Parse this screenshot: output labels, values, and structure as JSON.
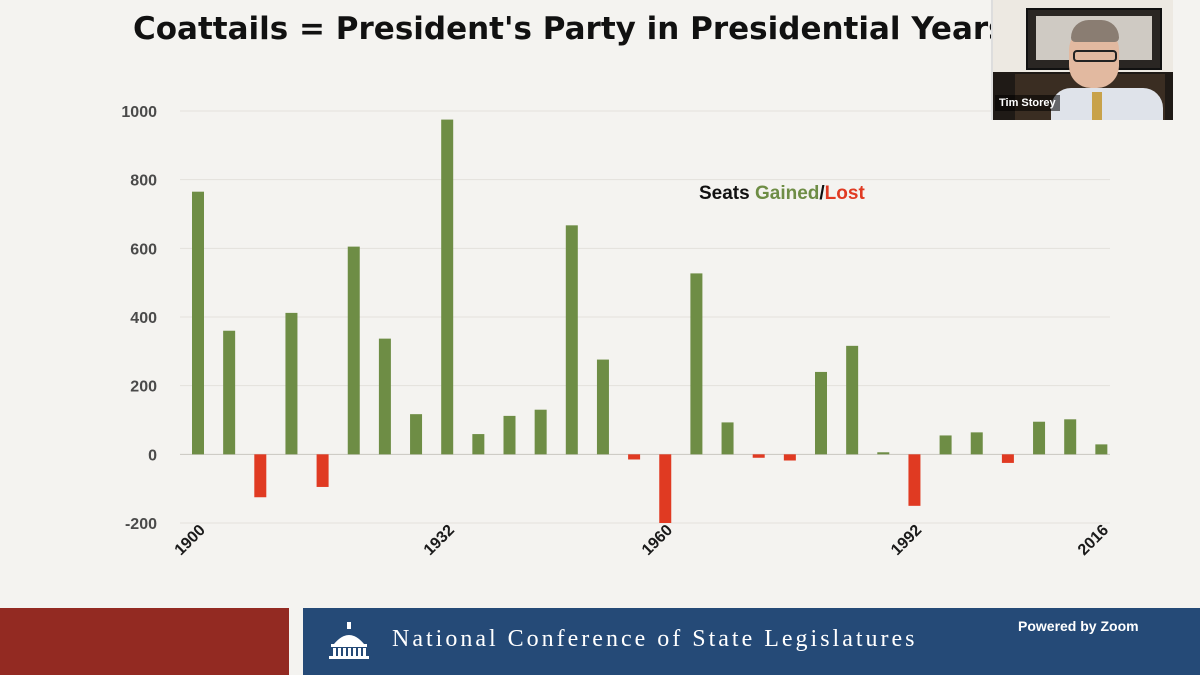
{
  "slide": {
    "title": "Coattails = President's Party in Presidential Years"
  },
  "webcam": {
    "participant_name": "Tim Storey"
  },
  "footer": {
    "organization": "National Conference of State Legislatures",
    "zoom_label": "Powered by Zoom"
  },
  "colors": {
    "gain": "#6e8d45",
    "loss": "#e03a22",
    "legend_dark": "#111111",
    "footer_red": "#932a22",
    "footer_blue": "#254a77"
  },
  "chart_data": {
    "type": "bar",
    "title": "Coattails = President's Party in Presidential Years",
    "legend": {
      "prefix": "Seats ",
      "gained": "Gained",
      "separator": "/",
      "lost": "Lost",
      "placement": "upper-center"
    },
    "categories": [
      1900,
      1904,
      1908,
      1912,
      1916,
      1920,
      1924,
      1928,
      1932,
      1936,
      1940,
      1944,
      1948,
      1952,
      1956,
      1960,
      1964,
      1968,
      1972,
      1976,
      1980,
      1984,
      1988,
      1992,
      1996,
      2000,
      2004,
      2008,
      2012,
      2016
    ],
    "values": [
      765,
      360,
      -125,
      412,
      -95,
      605,
      337,
      117,
      975,
      59,
      112,
      130,
      667,
      276,
      -15,
      -200,
      527,
      93,
      -10,
      -18,
      240,
      316,
      6,
      -150,
      55,
      64,
      -25,
      95,
      102,
      29
    ],
    "x_tick_labels": [
      "1900",
      "1932",
      "1960",
      "1992",
      "2016"
    ],
    "y_tick_labels": [
      "-200",
      "0",
      "200",
      "400",
      "600",
      "800",
      "1000"
    ],
    "ylim": [
      -200,
      1000
    ],
    "grid": true,
    "xlabel": "",
    "ylabel": ""
  }
}
